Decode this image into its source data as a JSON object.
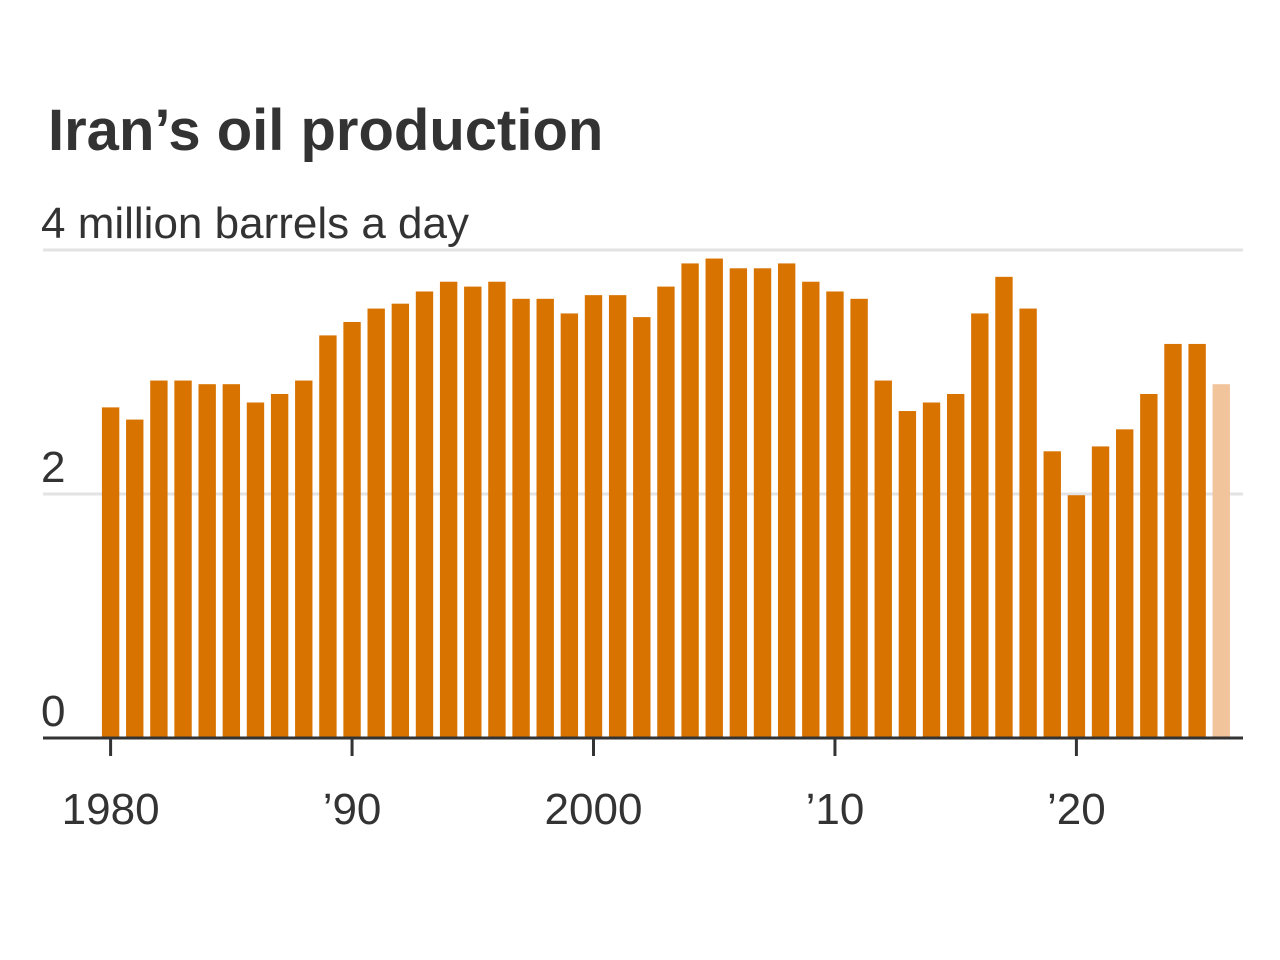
{
  "chart_data": {
    "type": "bar",
    "title": "Iran’s oil production",
    "x": [
      1980,
      1981,
      1982,
      1983,
      1984,
      1985,
      1986,
      1987,
      1988,
      1989,
      1990,
      1991,
      1992,
      1993,
      1994,
      1995,
      1996,
      1997,
      1998,
      1999,
      2000,
      2001,
      2002,
      2003,
      2004,
      2005,
      2006,
      2007,
      2008,
      2009,
      2010,
      2011,
      2012,
      2013,
      2014,
      2015,
      2016,
      2017,
      2018,
      2019,
      2020,
      2021,
      2022,
      2023,
      2024,
      2025,
      2026
    ],
    "values": [
      2.71,
      2.61,
      2.93,
      2.93,
      2.9,
      2.9,
      2.75,
      2.82,
      2.93,
      3.3,
      3.41,
      3.52,
      3.56,
      3.66,
      3.74,
      3.7,
      3.74,
      3.6,
      3.6,
      3.48,
      3.63,
      3.63,
      3.45,
      3.7,
      3.89,
      3.93,
      3.85,
      3.85,
      3.89,
      3.74,
      3.66,
      3.6,
      2.93,
      2.68,
      2.75,
      2.82,
      3.48,
      3.78,
      3.52,
      2.35,
      1.99,
      2.39,
      2.53,
      2.82,
      3.23,
      3.23,
      2.9
    ],
    "colors": [
      "#d97300",
      "#d97300",
      "#d97300",
      "#d97300",
      "#d97300",
      "#d97300",
      "#d97300",
      "#d97300",
      "#d97300",
      "#d97300",
      "#d97300",
      "#d97300",
      "#d97300",
      "#d97300",
      "#d97300",
      "#d97300",
      "#d97300",
      "#d97300",
      "#d97300",
      "#d97300",
      "#d97300",
      "#d97300",
      "#d97300",
      "#d97300",
      "#d97300",
      "#d97300",
      "#d97300",
      "#d97300",
      "#d97300",
      "#d97300",
      "#d97300",
      "#d97300",
      "#d97300",
      "#d97300",
      "#d97300",
      "#d97300",
      "#d97300",
      "#d97300",
      "#d97300",
      "#d97300",
      "#d97300",
      "#d97300",
      "#d97300",
      "#d97300",
      "#d97300",
      "#d97300",
      "#f2c49c"
    ],
    "xlim": [
      1977.2,
      2026.9
    ],
    "xticks": [
      1980,
      {
        "value": 1990,
        "label": "’90"
      },
      2000,
      {
        "value": 2010,
        "label": "’10"
      },
      {
        "value": 2020,
        "label": "’20"
      }
    ],
    "ylim": [
      0,
      4
    ],
    "yticks": [
      0,
      2,
      {
        "value": 4,
        "label": "4 million barrels a day"
      }
    ],
    "grid": true
  }
}
